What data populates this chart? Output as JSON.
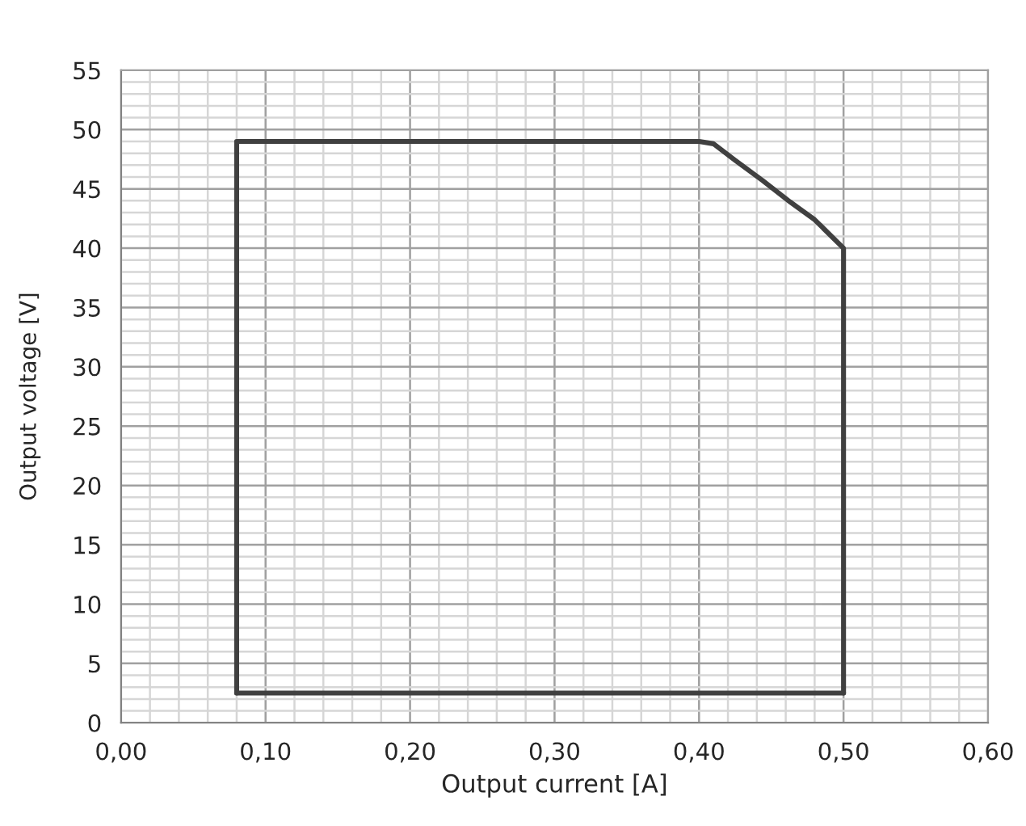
{
  "chart_data": {
    "type": "line",
    "xlabel": "Output current [A]",
    "ylabel": "Output voltage [V]",
    "series": [
      {
        "color": "#404040",
        "x": [
          0.08,
          0.08,
          0.4,
          0.41,
          0.425,
          0.444,
          0.463,
          0.48,
          0.5,
          0.5
        ],
        "values": [
          2.5,
          49,
          49,
          48.8,
          47.4,
          45.7,
          43.9,
          42.4,
          40,
          2.5
        ]
      },
      {
        "color": "#404040",
        "x": [
          0.08,
          0.5
        ],
        "values": [
          2.5,
          2.5
        ]
      }
    ],
    "xlim": [
      0,
      0.6
    ],
    "ylim": [
      0,
      55
    ],
    "xticks": [
      {
        "value": 0,
        "label": "0,00"
      },
      {
        "value": 0.1,
        "label": "0,10"
      },
      {
        "value": 0.2,
        "label": "0,20"
      },
      {
        "value": 0.3,
        "label": "0,30"
      },
      {
        "value": 0.4,
        "label": "0,40"
      },
      {
        "value": 0.5,
        "label": "0,50"
      },
      {
        "value": 0.6,
        "label": "0,60"
      }
    ],
    "yticks": [
      0,
      5,
      10,
      15,
      20,
      25,
      30,
      35,
      40,
      45,
      50,
      55
    ],
    "grid": true,
    "marker": "none",
    "line_style": "solid"
  }
}
